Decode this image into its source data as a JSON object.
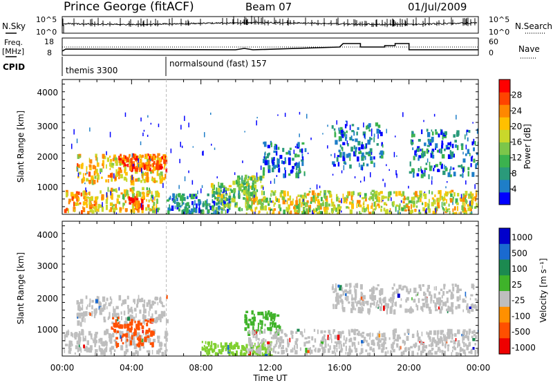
{
  "header": {
    "station": "Prince George (fitACF)",
    "beam": "Beam 07",
    "date": "01/Jul/2009"
  },
  "nsky_panel": {
    "left_label": "N.Sky",
    "left_ticks": [
      "10^5",
      "10^0"
    ],
    "right_ticks": [
      "10^5",
      "10^0"
    ],
    "right_label": "N.Search"
  },
  "freq_panel": {
    "left_label_1": "Freq.",
    "left_label_2": "[MHz]",
    "left_ticks": [
      "18",
      "8"
    ],
    "right_ticks": [
      "60",
      "0"
    ],
    "right_label": "Nave"
  },
  "cpid_panel": {
    "label": "CPID",
    "segments": [
      {
        "name": "themis 3300",
        "start_hour": 0,
        "end_hour": 6
      },
      {
        "name": "normalsound (fast) 157",
        "start_hour": 6,
        "end_hour": 24
      }
    ]
  },
  "power_panel": {
    "ylabel": "Slant Range [km]",
    "yticks": [
      "4000",
      "3000",
      "2000",
      "1000"
    ],
    "cbar_label": "Power [dB]",
    "cbar_ticks": [
      "28",
      "24",
      "20",
      "16",
      "12",
      "8",
      "4"
    ]
  },
  "velocity_panel": {
    "ylabel": "Slant Range [km]",
    "yticks": [
      "4000",
      "3000",
      "2000",
      "1000"
    ],
    "cbar_label": "Velocity  [m s⁻¹]",
    "cbar_ticks": [
      "1000",
      "500",
      "100",
      "25",
      "-25",
      "-100",
      "-500",
      "-1000"
    ]
  },
  "xaxis": {
    "label": "Time UT",
    "ticks": [
      "00:00",
      "04:00",
      "08:00",
      "12:00",
      "16:00",
      "20:00",
      "00:00"
    ]
  },
  "colors": {
    "power_scale": [
      "#0000ff",
      "#1e7ec8",
      "#2a9a7a",
      "#3bb24e",
      "#7cc64a",
      "#c9d82b",
      "#ffc000",
      "#ff8800",
      "#ff4400",
      "#ff0000"
    ],
    "velocity_scale": [
      "#0000cc",
      "#1a6ad0",
      "#1c8a50",
      "#3fb32a",
      "#80d030",
      "#bebebe",
      "#f0c000",
      "#ff9000",
      "#ff5000",
      "#ee0000"
    ]
  },
  "chart_data": [
    {
      "type": "heatmap",
      "title": "Power",
      "x_unit": "hours UT",
      "y_unit": "km",
      "xlim": [
        0,
        24
      ],
      "ylim": [
        200,
        4600
      ],
      "colorbar_range_dB": [
        0,
        32
      ],
      "regions": [
        {
          "t": [
            0.1,
            2.3
          ],
          "r": [
            300,
            1000
          ],
          "level": 22
        },
        {
          "t": [
            0.8,
            6.0
          ],
          "r": [
            1300,
            2200
          ],
          "level": 20
        },
        {
          "t": [
            3.2,
            6.0
          ],
          "r": [
            1700,
            2200
          ],
          "level": 26
        },
        {
          "t": [
            2.5,
            5.5
          ],
          "r": [
            350,
            1100
          ],
          "level": 18
        },
        {
          "t": [
            3.8,
            4.6
          ],
          "r": [
            500,
            800
          ],
          "level": 26
        },
        {
          "t": [
            6.0,
            9.5
          ],
          "r": [
            250,
            900
          ],
          "level": 8
        },
        {
          "t": [
            8.5,
            11.0
          ],
          "r": [
            400,
            1300
          ],
          "level": 14
        },
        {
          "t": [
            10.0,
            11.5
          ],
          "r": [
            1000,
            1500
          ],
          "level": 14
        },
        {
          "t": [
            10.5,
            24.0
          ],
          "r": [
            250,
            1000
          ],
          "level": 18
        },
        {
          "t": [
            11.5,
            14.0
          ],
          "r": [
            1500,
            2600
          ],
          "level": 6
        },
        {
          "t": [
            15.5,
            18.5
          ],
          "r": [
            1800,
            3200
          ],
          "level": 6
        },
        {
          "t": [
            20.0,
            24.0
          ],
          "r": [
            1500,
            3000
          ],
          "level": 6
        }
      ]
    },
    {
      "type": "heatmap",
      "title": "Velocity",
      "x_unit": "hours UT",
      "y_unit": "km",
      "xlim": [
        0,
        24
      ],
      "ylim": [
        200,
        4600
      ],
      "colorbar_range_ms": [
        -1000,
        1000
      ],
      "regions": [
        {
          "t": [
            0.1,
            6.0
          ],
          "r": [
            300,
            1100
          ],
          "velocity": 0
        },
        {
          "t": [
            0.8,
            6.0
          ],
          "r": [
            1300,
            2200
          ],
          "velocity": 0
        },
        {
          "t": [
            2.8,
            5.2
          ],
          "r": [
            600,
            1500
          ],
          "velocity": -300
        },
        {
          "t": [
            8.0,
            12.0
          ],
          "r": [
            200,
            700
          ],
          "velocity": 60
        },
        {
          "t": [
            10.5,
            12.5
          ],
          "r": [
            1000,
            1700
          ],
          "velocity": 200
        },
        {
          "t": [
            10.5,
            24.0
          ],
          "r": [
            300,
            1100
          ],
          "velocity": 0
        },
        {
          "t": [
            15.5,
            24.0
          ],
          "r": [
            1700,
            2600
          ],
          "velocity": 0
        }
      ]
    }
  ]
}
